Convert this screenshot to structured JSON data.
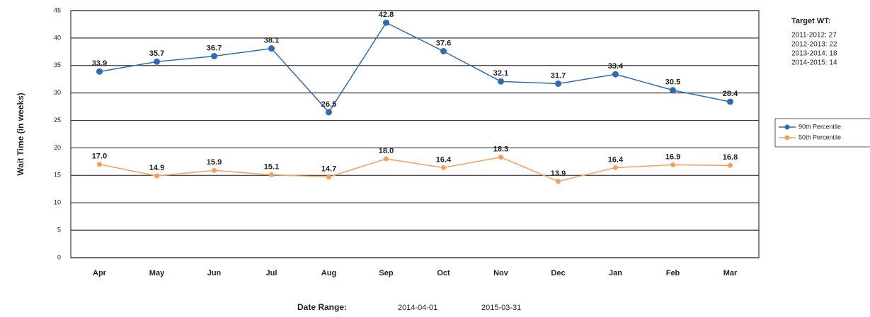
{
  "chart_data": {
    "type": "line",
    "y_label": "Wait Time (in weeks)",
    "categories": [
      "Apr",
      "May",
      "Jun",
      "Jul",
      "Aug",
      "Sep",
      "Oct",
      "Nov",
      "Dec",
      "Jan",
      "Feb",
      "Mar"
    ],
    "series": [
      {
        "name": "90th Percentile",
        "color": "#2e6db4",
        "values": [
          33.9,
          35.7,
          36.7,
          38.1,
          26.5,
          42.8,
          37.6,
          32.1,
          31.7,
          33.4,
          30.5,
          28.4
        ],
        "value_labels": [
          "33.9",
          "35.7",
          "36.7",
          "38.1",
          "26.5",
          "42.8",
          "37.6",
          "32.1",
          "31.7",
          "33.4",
          "30.5",
          "28.4"
        ]
      },
      {
        "name": "50th Percentile",
        "color": "#f5a05a",
        "values": [
          17.0,
          14.9,
          15.9,
          15.1,
          14.7,
          18.0,
          16.4,
          18.3,
          13.9,
          16.4,
          16.9,
          16.8
        ],
        "value_labels": [
          "17.0",
          "14.9",
          "15.9",
          "15.1",
          "14.7",
          "18.0",
          "16.4",
          "18.3",
          "13.9",
          "16.4",
          "16.9",
          "16.8"
        ]
      }
    ],
    "ylim": [
      0,
      45
    ],
    "yticks": [
      0,
      5,
      10,
      15,
      20,
      25,
      30,
      35,
      40,
      45
    ],
    "grid": true,
    "target_title": "Target WT:",
    "targets": [
      "2011-2012: 27",
      "2012-2013: 22",
      "2013-2014: 18",
      "2014-2015: 14"
    ],
    "date_range_label": "Date Range:",
    "date_range": [
      "2014-04-01",
      "2015-03-31"
    ]
  }
}
